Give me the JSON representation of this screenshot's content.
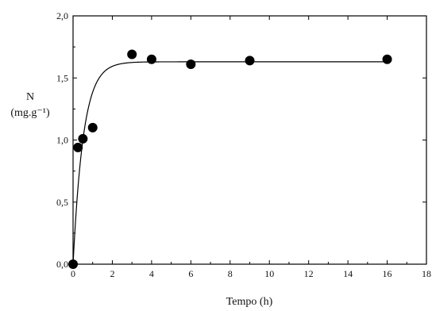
{
  "chart_data": {
    "type": "scatter",
    "xlabel": "Tempo (h)",
    "ylabel_line1": "N",
    "ylabel_line2": "(mg.g⁻¹)",
    "xlim": [
      0,
      18
    ],
    "ylim": [
      0,
      2.0
    ],
    "x_ticks": [
      0,
      2,
      4,
      6,
      8,
      10,
      12,
      14,
      16,
      18
    ],
    "y_ticks": [
      0,
      0.5,
      1.0,
      1.5,
      2.0
    ],
    "x_tick_labels": [
      "0",
      "2",
      "4",
      "6",
      "8",
      "10",
      "12",
      "14",
      "16",
      "18"
    ],
    "y_tick_labels": [
      "0,0",
      "0,5",
      "1,0",
      "1,5",
      "2,0"
    ],
    "grid": false,
    "points": [
      {
        "x": 0,
        "y": 0.0
      },
      {
        "x": 0.25,
        "y": 0.94
      },
      {
        "x": 0.5,
        "y": 1.01
      },
      {
        "x": 1,
        "y": 1.1
      },
      {
        "x": 3,
        "y": 1.69
      },
      {
        "x": 4,
        "y": 1.65
      },
      {
        "x": 6,
        "y": 1.61
      },
      {
        "x": 9,
        "y": 1.64
      },
      {
        "x": 16,
        "y": 1.65
      }
    ],
    "fit_curve": {
      "model": "exponential-saturation",
      "plateau": 1.63,
      "rate": 1.9
    },
    "marker_color": "#000000",
    "line_color": "#000000"
  }
}
